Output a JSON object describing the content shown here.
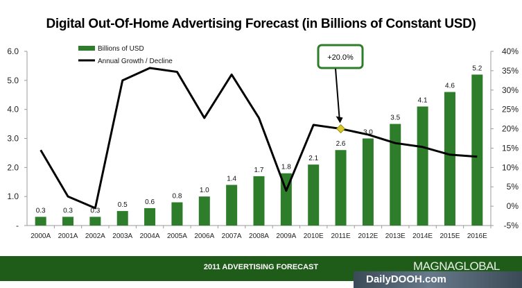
{
  "chart_data": {
    "type": "bar",
    "title": "Digital Out-Of-Home Advertising Forecast (in Billions of Constant USD)",
    "categories": [
      "2000A",
      "2001A",
      "2002A",
      "2003A",
      "2004A",
      "2005A",
      "2006A",
      "2007A",
      "2008A",
      "2009A",
      "2010E",
      "2011E",
      "2012E",
      "2013E",
      "2014E",
      "2015E",
      "2016E"
    ],
    "series": [
      {
        "name": "Billions of USD",
        "type": "bar",
        "axis": "left",
        "color": "#2e7d2a",
        "values": [
          0.3,
          0.3,
          0.3,
          0.5,
          0.6,
          0.8,
          1.0,
          1.4,
          1.7,
          1.8,
          2.1,
          2.6,
          3.0,
          3.5,
          4.1,
          4.6,
          5.2
        ],
        "labels": [
          "0.3",
          "0.3",
          "0.3",
          "0.5",
          "0.6",
          "0.8",
          "1.0",
          "1.4",
          "1.7",
          "1.8",
          "2.1",
          "2.6",
          "3.0",
          "3.5",
          "4.1",
          "4.6",
          "5.2"
        ]
      },
      {
        "name": "Annual Growth  / Decline",
        "type": "line",
        "axis": "right",
        "color": "#000000",
        "values": [
          14.5,
          2.5,
          -0.5,
          32.5,
          35.7,
          34.7,
          22.8,
          34,
          22.8,
          4,
          21,
          20,
          18.5,
          16.3,
          15.3,
          13.3,
          12.8
        ]
      }
    ],
    "y_left": {
      "ticks": [
        0,
        1,
        2,
        3,
        4,
        5,
        6
      ],
      "tick_labels": [
        "-",
        "1.0",
        "2.0",
        "3.0",
        "4.0",
        "5.0",
        "6.0"
      ],
      "range": [
        0,
        6
      ]
    },
    "y_right": {
      "ticks": [
        -5,
        0,
        5,
        10,
        15,
        20,
        25,
        30,
        35,
        40
      ],
      "tick_labels": [
        "-5%",
        "0%",
        "5%",
        "10%",
        "15%",
        "20%",
        "25%",
        "30%",
        "35%",
        "40%"
      ],
      "range": [
        -5,
        40
      ]
    },
    "legend_placement": "top-left",
    "callout": {
      "text": "+20.0%",
      "category": "2011E",
      "value": 20,
      "border_color": "#2e7d2a",
      "marker_color": "#d9c92a"
    },
    "grid": false
  },
  "footer": {
    "title": "2011 ADVERTISING FORECAST",
    "brand": "MAGNAGLOBAL",
    "watermark": "DailyDOOH.com"
  }
}
